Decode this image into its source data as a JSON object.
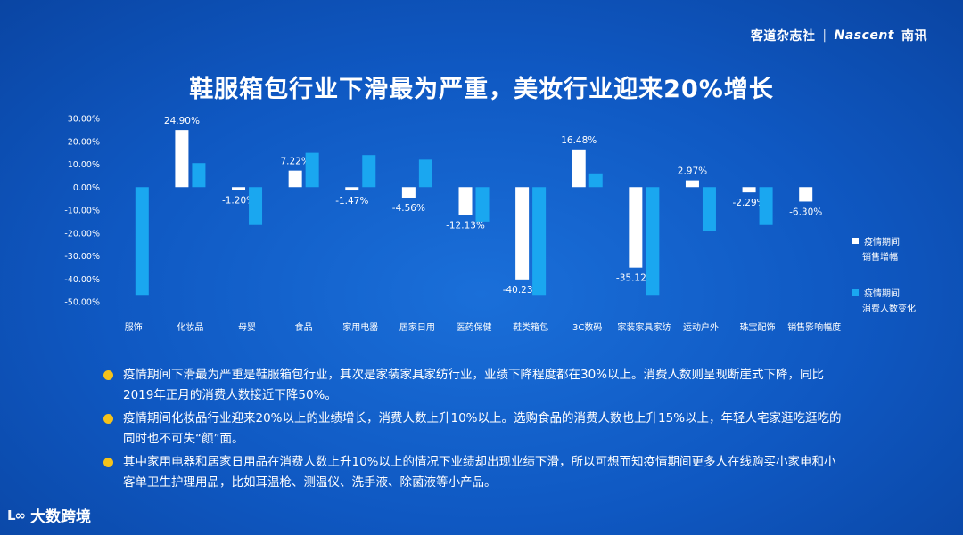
{
  "brand": {
    "cn": "客道杂志社",
    "sep": "|",
    "en": "Nascent",
    "en_cn": "南讯"
  },
  "title": "鞋服箱包行业下滑最为严重，美妆行业迎来20%增长",
  "chart_data": {
    "type": "bar",
    "title": "",
    "xlabel": "",
    "ylabel": "",
    "ylim": [
      -50,
      30
    ],
    "yticks": [
      30,
      20,
      10,
      0,
      -10,
      -20,
      -30,
      -40,
      -50
    ],
    "ytick_labels": [
      "30.00%",
      "20.00%",
      "10.00%",
      "0.00%",
      "-10.00%",
      "-20.00%",
      "-30.00%",
      "-40.00%",
      "-50.00%"
    ],
    "grid": false,
    "legend_position": "right",
    "categories": [
      "服饰",
      "化妆品",
      "母婴",
      "食品",
      "家用电器",
      "居家日用",
      "医药保健",
      "鞋类箱包",
      "3C数码",
      "家装家具家纺",
      "运动户外",
      "珠宝配饰",
      "销售影响幅度"
    ],
    "series": [
      {
        "name": "疫情期间销售增幅",
        "legend_lines": [
          "疫情期间",
          "销售增幅"
        ],
        "color": "#ffffff",
        "values": [
          null,
          24.9,
          -1.2,
          7.22,
          -1.47,
          -4.56,
          -12.13,
          -40.23,
          16.48,
          -35.12,
          2.97,
          -2.29,
          -6.3
        ],
        "labels": [
          "",
          "24.90%",
          "-1.20%",
          "7.22%",
          "-1.47%",
          "-4.56%",
          "-12.13%",
          "-40.23%",
          "16.48%",
          "-35.12%",
          "2.97%",
          "-2.29%",
          "-6.30%"
        ]
      },
      {
        "name": "疫情期间消费人数变化",
        "legend_lines": [
          "疫情期间",
          "消费人数变化"
        ],
        "color": "#1aa7f0",
        "values": [
          -47,
          10.5,
          -16.5,
          15,
          14,
          12,
          -15,
          -47,
          6,
          -47,
          -19,
          -16.5,
          null
        ]
      }
    ]
  },
  "bullets": [
    "疫情期间下滑最为严重是鞋服箱包行业，其次是家装家具家纺行业，业绩下降程度都在30%以上。消费人数则呈现断崖式下降，同比2019年正月的消费人数接近下降50%。",
    "疫情期间化妆品行业迎来20%以上的业绩增长，消费人数上升10%以上。选购食品的消费人数也上升15%以上，年轻人宅家逛吃逛吃的同时也不可失“颜”面。",
    "其中家用电器和居家日用品在消费人数上升10%以上的情况下业绩却出现业绩下滑，所以可想而知疫情期间更多人在线购买小家电和小客单卫生护理用品，比如耳温枪、测温仪、洗手液、除菌液等小产品。"
  ],
  "footer": {
    "logo_mark": "L∞",
    "logo_text": "大数跨境"
  },
  "colors": {
    "background": "#0f58c2",
    "accent_bullet": "#f5c21a",
    "bar_white": "#ffffff",
    "bar_blue": "#1aa7f0"
  }
}
